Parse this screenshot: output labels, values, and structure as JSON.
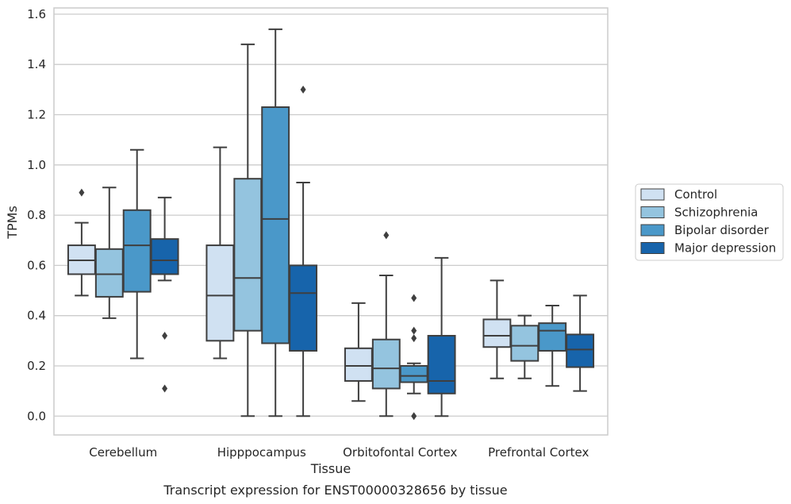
{
  "chart_data": {
    "type": "box",
    "title": "Transcript expression for ENST00000328656 by tissue",
    "xlabel": "Tissue",
    "ylabel": "TPMs",
    "ylim": [
      -0.075,
      1.625
    ],
    "yticks": [
      "0.0",
      "0.2",
      "0.4",
      "0.6",
      "0.8",
      "1.0",
      "1.2",
      "1.4",
      "1.6"
    ],
    "categories": [
      "Cerebellum",
      "Hipppocampus",
      "Orbitofontal Cortex",
      "Prefrontal Cortex"
    ],
    "grid": "horizontal",
    "legend_position": "right",
    "series": [
      {
        "name": "Control",
        "color": "#d0e1f2",
        "boxes": [
          {
            "whislo": 0.48,
            "q1": 0.565,
            "med": 0.62,
            "q3": 0.68,
            "whishi": 0.77,
            "fliers": [
              0.89
            ]
          },
          {
            "whislo": 0.23,
            "q1": 0.3,
            "med": 0.48,
            "q3": 0.68,
            "whishi": 1.07,
            "fliers": []
          },
          {
            "whislo": 0.06,
            "q1": 0.14,
            "med": 0.2,
            "q3": 0.27,
            "whishi": 0.45,
            "fliers": []
          },
          {
            "whislo": 0.15,
            "q1": 0.275,
            "med": 0.32,
            "q3": 0.385,
            "whishi": 0.54,
            "fliers": []
          }
        ]
      },
      {
        "name": "Schizophrenia",
        "color": "#94c4df",
        "boxes": [
          {
            "whislo": 0.39,
            "q1": 0.475,
            "med": 0.565,
            "q3": 0.665,
            "whishi": 0.91,
            "fliers": []
          },
          {
            "whislo": 0.0,
            "q1": 0.34,
            "med": 0.55,
            "q3": 0.945,
            "whishi": 1.48,
            "fliers": []
          },
          {
            "whislo": 0.0,
            "q1": 0.11,
            "med": 0.19,
            "q3": 0.305,
            "whishi": 0.56,
            "fliers": [
              0.72
            ]
          },
          {
            "whislo": 0.15,
            "q1": 0.22,
            "med": 0.28,
            "q3": 0.36,
            "whishi": 0.4,
            "fliers": []
          }
        ]
      },
      {
        "name": "Bipolar disorder",
        "color": "#4a98c9",
        "boxes": [
          {
            "whislo": 0.23,
            "q1": 0.495,
            "med": 0.68,
            "q3": 0.82,
            "whishi": 1.06,
            "fliers": []
          },
          {
            "whislo": 0.0,
            "q1": 0.29,
            "med": 0.785,
            "q3": 1.23,
            "whishi": 1.54,
            "fliers": []
          },
          {
            "whislo": 0.09,
            "q1": 0.135,
            "med": 0.16,
            "q3": 0.2,
            "whishi": 0.21,
            "fliers": [
              0.47,
              0.34,
              0.31,
              0.0
            ]
          },
          {
            "whislo": 0.12,
            "q1": 0.26,
            "med": 0.34,
            "q3": 0.37,
            "whishi": 0.44,
            "fliers": []
          }
        ]
      },
      {
        "name": "Major depression",
        "color": "#1764ab",
        "boxes": [
          {
            "whislo": 0.54,
            "q1": 0.565,
            "med": 0.62,
            "q3": 0.705,
            "whishi": 0.87,
            "fliers": [
              0.32,
              0.11
            ]
          },
          {
            "whislo": 0.0,
            "q1": 0.26,
            "med": 0.49,
            "q3": 0.6,
            "whishi": 0.93,
            "fliers": [
              1.3
            ]
          },
          {
            "whislo": 0.0,
            "q1": 0.09,
            "med": 0.14,
            "q3": 0.32,
            "whishi": 0.63,
            "fliers": []
          },
          {
            "whislo": 0.1,
            "q1": 0.195,
            "med": 0.265,
            "q3": 0.325,
            "whishi": 0.48,
            "fliers": []
          }
        ]
      }
    ]
  }
}
